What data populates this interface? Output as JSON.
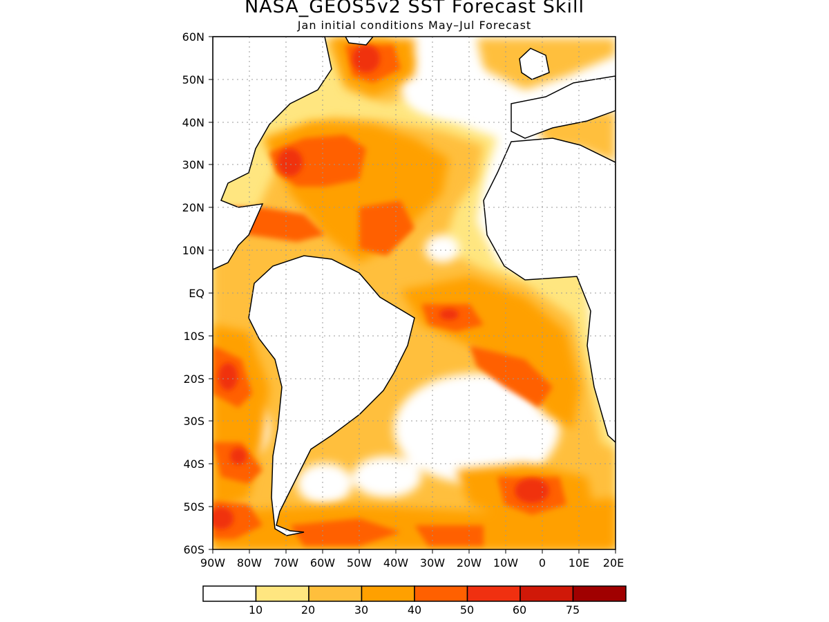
{
  "title": "NASA_GEOS5v2 SST Forecast Skill",
  "subtitle": "Jan initial conditions  May–Jul Forecast",
  "map": {
    "lat_labels": [
      "60N",
      "50N",
      "40N",
      "30N",
      "20N",
      "10N",
      "EQ",
      "10S",
      "20S",
      "30S",
      "40S",
      "50S",
      "60S"
    ],
    "lon_labels": [
      "90W",
      "80W",
      "70W",
      "60W",
      "50W",
      "40W",
      "30W",
      "20W",
      "10W",
      "0",
      "10E",
      "20E"
    ],
    "lat_range": [
      -60,
      60
    ],
    "lon_range": [
      -90,
      20
    ],
    "grid": "dotted"
  },
  "legend": {
    "labels": [
      "10",
      "20",
      "30",
      "40",
      "50",
      "60",
      "75"
    ],
    "colors": [
      "#ffffff",
      "#ffe680",
      "#ffbf3c",
      "#ffa000",
      "#ff6000",
      "#f03010",
      "#d01808",
      "#a00000"
    ]
  },
  "colors": {
    "level1": "#ffe680",
    "level2": "#ffbf3c",
    "level3": "#ffa000",
    "level4": "#ff6000",
    "level5": "#f03010",
    "level6": "#d01808",
    "land": "#ffffff"
  }
}
